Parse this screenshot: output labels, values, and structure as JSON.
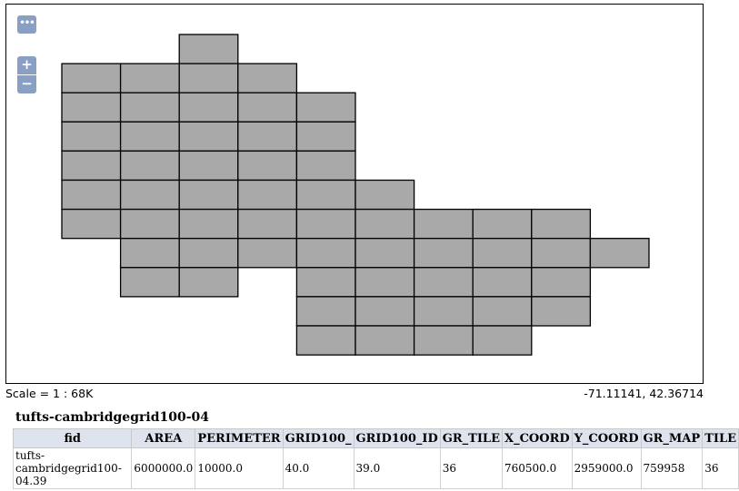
{
  "map": {
    "controls": {
      "more": "•••",
      "zoom_in": "+",
      "zoom_out": "−"
    },
    "fill_color": "#a9a9a9",
    "stroke_color": "#000000",
    "grid_rows": [
      {
        "row": 0,
        "cols": [
          2
        ]
      },
      {
        "row": 1,
        "cols": [
          0,
          1,
          2,
          3
        ]
      },
      {
        "row": 2,
        "cols": [
          0,
          1,
          2,
          3,
          4
        ]
      },
      {
        "row": 3,
        "cols": [
          0,
          1,
          2,
          3,
          4
        ]
      },
      {
        "row": 4,
        "cols": [
          0,
          1,
          2,
          3,
          4
        ]
      },
      {
        "row": 5,
        "cols": [
          0,
          1,
          2,
          3,
          4,
          5
        ]
      },
      {
        "row": 6,
        "cols": [
          0,
          1,
          2,
          3,
          4,
          5,
          6,
          7,
          8
        ]
      },
      {
        "row": 7,
        "cols": [
          1,
          2,
          3,
          4,
          5,
          6,
          7,
          8,
          9
        ]
      },
      {
        "row": 8,
        "cols": [
          1,
          2,
          4,
          5,
          6,
          7,
          8
        ]
      },
      {
        "row": 9,
        "cols": [
          4,
          5,
          6,
          7,
          8
        ]
      },
      {
        "row": 10,
        "cols": [
          4,
          5,
          6,
          7
        ]
      }
    ]
  },
  "status": {
    "scale": "Scale = 1 : 68K",
    "coordinates": "-71.11141, 42.36714"
  },
  "layer": {
    "title": "tufts-cambridgegrid100-04",
    "columns": [
      "fid",
      "AREA",
      "PERIMETER",
      "GRID100_",
      "GRID100_ID",
      "GR_TILE",
      "X_COORD",
      "Y_COORD",
      "GR_MAP",
      "TILE"
    ],
    "row": [
      "tufts-cambridgegrid100-04.39",
      "6000000.0",
      "10000.0",
      "40.0",
      "39.0",
      "36",
      "760500.0",
      "2959000.0",
      "759958",
      "36"
    ]
  }
}
